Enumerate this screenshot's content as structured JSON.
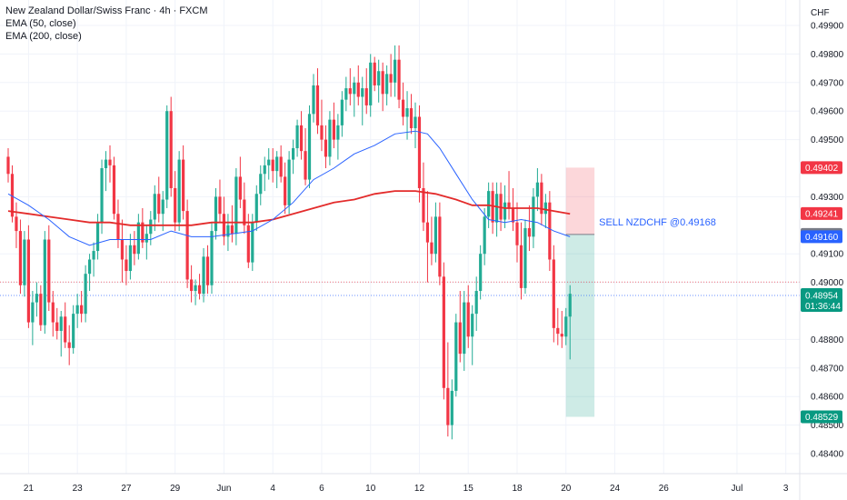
{
  "header": {
    "title": "New Zealand Dollar/Swiss Franc · 4h · FXCM",
    "ema50": "EMA (50, close)",
    "ema200": "EMA (200, close)",
    "currency": "CHF"
  },
  "chart_data": {
    "type": "candlestick",
    "ylim": [
      0.4834,
      0.4995
    ],
    "y_ticks": [
      "0.49900",
      "0.49800",
      "0.49700",
      "0.49600",
      "0.49500",
      "0.49300",
      "0.49100",
      "0.49000",
      "0.48800",
      "0.48700",
      "0.48600",
      "0.48500",
      "0.48400"
    ],
    "y_tick_values": [
      0.499,
      0.498,
      0.497,
      0.496,
      0.495,
      0.493,
      0.491,
      0.49,
      0.488,
      0.487,
      0.486,
      0.485,
      0.484
    ],
    "x_ticks": [
      "21",
      "23",
      "27",
      "29",
      "Jun",
      "4",
      "6",
      "10",
      "12",
      "15",
      "18",
      "20",
      "24",
      "26",
      "Jul",
      "3"
    ],
    "x_tick_index": [
      5,
      17,
      29,
      41,
      53,
      65,
      77,
      89,
      101,
      113,
      125,
      137,
      149,
      161,
      179,
      191
    ],
    "colors": {
      "up": "#22ab94",
      "down": "#f23645",
      "ema50": "#2962ff",
      "ema200": "#e32b2b",
      "sell": "#2962ff"
    },
    "candles": [
      [
        0.4944,
        0.4947,
        0.4935,
        0.4938
      ],
      [
        0.4938,
        0.4941,
        0.4921,
        0.4923
      ],
      [
        0.4923,
        0.4928,
        0.4912,
        0.4918
      ],
      [
        0.4918,
        0.4922,
        0.4896,
        0.4899
      ],
      [
        0.4899,
        0.4918,
        0.4895,
        0.4915
      ],
      [
        0.4915,
        0.492,
        0.4884,
        0.4886
      ],
      [
        0.4886,
        0.4897,
        0.4878,
        0.4893
      ],
      [
        0.4893,
        0.49,
        0.4888,
        0.4896
      ],
      [
        0.4896,
        0.4899,
        0.4883,
        0.4885
      ],
      [
        0.4885,
        0.4918,
        0.4882,
        0.4915
      ],
      [
        0.4915,
        0.492,
        0.489,
        0.4893
      ],
      [
        0.4893,
        0.4897,
        0.4881,
        0.4886
      ],
      [
        0.4886,
        0.4891,
        0.488,
        0.4883
      ],
      [
        0.4883,
        0.489,
        0.4874,
        0.4888
      ],
      [
        0.4888,
        0.4893,
        0.4877,
        0.4879
      ],
      [
        0.4879,
        0.4885,
        0.4871,
        0.4877
      ],
      [
        0.4877,
        0.4892,
        0.4875,
        0.4889
      ],
      [
        0.4889,
        0.4896,
        0.4884,
        0.4892
      ],
      [
        0.4892,
        0.4897,
        0.4886,
        0.4889
      ],
      [
        0.4889,
        0.4906,
        0.4886,
        0.4903
      ],
      [
        0.4903,
        0.491,
        0.4897,
        0.4908
      ],
      [
        0.4908,
        0.4914,
        0.4902,
        0.4911
      ],
      [
        0.4911,
        0.4924,
        0.4908,
        0.4921
      ],
      [
        0.4921,
        0.4943,
        0.4917,
        0.494
      ],
      [
        0.494,
        0.4946,
        0.4932,
        0.4943
      ],
      [
        0.4943,
        0.4948,
        0.4935,
        0.4941
      ],
      [
        0.4941,
        0.4944,
        0.4922,
        0.4924
      ],
      [
        0.4924,
        0.4929,
        0.4912,
        0.4915
      ],
      [
        0.4915,
        0.4922,
        0.49,
        0.4908
      ],
      [
        0.4908,
        0.4913,
        0.4899,
        0.4904
      ],
      [
        0.4904,
        0.4917,
        0.4901,
        0.4913
      ],
      [
        0.4913,
        0.4918,
        0.4906,
        0.491
      ],
      [
        0.491,
        0.4924,
        0.4908,
        0.4921
      ],
      [
        0.4921,
        0.4926,
        0.4912,
        0.4914
      ],
      [
        0.4914,
        0.492,
        0.4908,
        0.4917
      ],
      [
        0.4917,
        0.4925,
        0.4913,
        0.4922
      ],
      [
        0.4922,
        0.4934,
        0.4918,
        0.4931
      ],
      [
        0.4931,
        0.4937,
        0.4921,
        0.4924
      ],
      [
        0.4924,
        0.4932,
        0.4918,
        0.4929
      ],
      [
        0.4929,
        0.4962,
        0.4926,
        0.496
      ],
      [
        0.496,
        0.4965,
        0.493,
        0.4933
      ],
      [
        0.4933,
        0.4939,
        0.4918,
        0.4921
      ],
      [
        0.4921,
        0.4946,
        0.4918,
        0.4943
      ],
      [
        0.4943,
        0.4948,
        0.4922,
        0.4925
      ],
      [
        0.4925,
        0.4929,
        0.4898,
        0.4901
      ],
      [
        0.4901,
        0.4906,
        0.4893,
        0.4897
      ],
      [
        0.4897,
        0.4901,
        0.4892,
        0.4899
      ],
      [
        0.4899,
        0.4903,
        0.4894,
        0.4896
      ],
      [
        0.4896,
        0.4912,
        0.4893,
        0.4909
      ],
      [
        0.4909,
        0.4913,
        0.4896,
        0.4899
      ],
      [
        0.4899,
        0.4921,
        0.4896,
        0.4918
      ],
      [
        0.4918,
        0.4933,
        0.4915,
        0.493
      ],
      [
        0.493,
        0.4936,
        0.4921,
        0.4924
      ],
      [
        0.4924,
        0.493,
        0.4913,
        0.4916
      ],
      [
        0.4916,
        0.4924,
        0.4911,
        0.492
      ],
      [
        0.492,
        0.4927,
        0.4914,
        0.4917
      ],
      [
        0.4917,
        0.494,
        0.4913,
        0.4937
      ],
      [
        0.4937,
        0.4944,
        0.4926,
        0.4929
      ],
      [
        0.4929,
        0.4935,
        0.4917,
        0.492
      ],
      [
        0.492,
        0.4924,
        0.4905,
        0.4907
      ],
      [
        0.4907,
        0.4924,
        0.4904,
        0.4921
      ],
      [
        0.4921,
        0.4934,
        0.4918,
        0.4931
      ],
      [
        0.4931,
        0.4941,
        0.4927,
        0.4938
      ],
      [
        0.4938,
        0.4944,
        0.4932,
        0.4941
      ],
      [
        0.4941,
        0.4947,
        0.4936,
        0.4943
      ],
      [
        0.4943,
        0.4947,
        0.4935,
        0.4939
      ],
      [
        0.4939,
        0.4946,
        0.4933,
        0.4944
      ],
      [
        0.4944,
        0.4948,
        0.4935,
        0.4937
      ],
      [
        0.4937,
        0.4942,
        0.4924,
        0.4927
      ],
      [
        0.4927,
        0.4946,
        0.4924,
        0.4943
      ],
      [
        0.4943,
        0.495,
        0.4938,
        0.4947
      ],
      [
        0.4947,
        0.4957,
        0.4944,
        0.4955
      ],
      [
        0.4955,
        0.496,
        0.4943,
        0.4946
      ],
      [
        0.4946,
        0.4954,
        0.4934,
        0.4936
      ],
      [
        0.4936,
        0.4962,
        0.4933,
        0.4959
      ],
      [
        0.4959,
        0.4973,
        0.4956,
        0.4969
      ],
      [
        0.4969,
        0.4975,
        0.4952,
        0.4955
      ],
      [
        0.4955,
        0.4964,
        0.4946,
        0.495
      ],
      [
        0.495,
        0.4955,
        0.494,
        0.4944
      ],
      [
        0.4944,
        0.496,
        0.4941,
        0.4957
      ],
      [
        0.4957,
        0.4963,
        0.4947,
        0.495
      ],
      [
        0.495,
        0.4959,
        0.4943,
        0.4955
      ],
      [
        0.4955,
        0.4967,
        0.4951,
        0.4964
      ],
      [
        0.4964,
        0.4972,
        0.496,
        0.4968
      ],
      [
        0.4968,
        0.4975,
        0.4962,
        0.4966
      ],
      [
        0.4966,
        0.4972,
        0.4958,
        0.497
      ],
      [
        0.497,
        0.4976,
        0.4962,
        0.4965
      ],
      [
        0.4965,
        0.4972,
        0.4955,
        0.4968
      ],
      [
        0.4968,
        0.4975,
        0.4959,
        0.4962
      ],
      [
        0.4962,
        0.498,
        0.4958,
        0.4977
      ],
      [
        0.4977,
        0.4979,
        0.4967,
        0.4969
      ],
      [
        0.4969,
        0.4978,
        0.4963,
        0.4974
      ],
      [
        0.4974,
        0.4977,
        0.496,
        0.4966
      ],
      [
        0.4966,
        0.4976,
        0.4962,
        0.4973
      ],
      [
        0.4973,
        0.498,
        0.4965,
        0.497
      ],
      [
        0.497,
        0.4983,
        0.4965,
        0.4978
      ],
      [
        0.4978,
        0.4983,
        0.4961,
        0.4964
      ],
      [
        0.4964,
        0.497,
        0.4955,
        0.4958
      ],
      [
        0.4958,
        0.4967,
        0.495,
        0.4961
      ],
      [
        0.4961,
        0.4966,
        0.4952,
        0.4954
      ],
      [
        0.4954,
        0.4963,
        0.4947,
        0.4958
      ],
      [
        0.4958,
        0.4962,
        0.4928,
        0.4933
      ],
      [
        0.4933,
        0.4942,
        0.4918,
        0.4921
      ],
      [
        0.4921,
        0.4932,
        0.49,
        0.4914
      ],
      [
        0.4914,
        0.4923,
        0.4906,
        0.491
      ],
      [
        0.491,
        0.4928,
        0.4907,
        0.4923
      ],
      [
        0.4923,
        0.4928,
        0.4899,
        0.4902
      ],
      [
        0.4902,
        0.4907,
        0.4859,
        0.4863
      ],
      [
        0.4863,
        0.4879,
        0.4846,
        0.485
      ],
      [
        0.485,
        0.4866,
        0.4845,
        0.4862
      ],
      [
        0.4862,
        0.4889,
        0.486,
        0.4886
      ],
      [
        0.4886,
        0.4897,
        0.4872,
        0.4875
      ],
      [
        0.4875,
        0.4897,
        0.4869,
        0.4893
      ],
      [
        0.4893,
        0.4899,
        0.4877,
        0.4881
      ],
      [
        0.4881,
        0.4892,
        0.4871,
        0.4889
      ],
      [
        0.4889,
        0.4902,
        0.4883,
        0.4897
      ],
      [
        0.4897,
        0.4913,
        0.4894,
        0.491
      ],
      [
        0.491,
        0.4926,
        0.4906,
        0.4923
      ],
      [
        0.4923,
        0.4935,
        0.4919,
        0.4932
      ],
      [
        0.4932,
        0.4935,
        0.4917,
        0.4921
      ],
      [
        0.4921,
        0.4935,
        0.4916,
        0.4931
      ],
      [
        0.4931,
        0.4935,
        0.4918,
        0.4922
      ],
      [
        0.4922,
        0.4934,
        0.4919,
        0.4928
      ],
      [
        0.4928,
        0.4939,
        0.4922,
        0.4926
      ],
      [
        0.4926,
        0.4933,
        0.4918,
        0.4921
      ],
      [
        0.4921,
        0.4928,
        0.4907,
        0.4913
      ],
      [
        0.4913,
        0.4921,
        0.4894,
        0.4898
      ],
      [
        0.4898,
        0.4922,
        0.4896,
        0.4919
      ],
      [
        0.4919,
        0.4927,
        0.4911,
        0.4916
      ],
      [
        0.4916,
        0.4933,
        0.4912,
        0.493
      ],
      [
        0.493,
        0.494,
        0.4925,
        0.4935
      ],
      [
        0.4935,
        0.4938,
        0.492,
        0.4924
      ],
      [
        0.4924,
        0.4931,
        0.4919,
        0.4928
      ],
      [
        0.4928,
        0.4932,
        0.4904,
        0.4908
      ],
      [
        0.4908,
        0.4913,
        0.4879,
        0.4884
      ],
      [
        0.4884,
        0.4891,
        0.4878,
        0.4882
      ],
      [
        0.4882,
        0.489,
        0.4877,
        0.4881
      ],
      [
        0.4881,
        0.4891,
        0.4878,
        0.4888
      ],
      [
        0.4888,
        0.4899,
        0.4873,
        0.4896
      ]
    ],
    "ema50": [
      [
        0,
        0.4931
      ],
      [
        5,
        0.4927
      ],
      [
        10,
        0.4922
      ],
      [
        15,
        0.4916
      ],
      [
        20,
        0.4913
      ],
      [
        25,
        0.4915
      ],
      [
        30,
        0.4915
      ],
      [
        35,
        0.4915
      ],
      [
        40,
        0.4918
      ],
      [
        45,
        0.4916
      ],
      [
        50,
        0.4916
      ],
      [
        55,
        0.4917
      ],
      [
        60,
        0.4918
      ],
      [
        65,
        0.4922
      ],
      [
        70,
        0.4928
      ],
      [
        75,
        0.4936
      ],
      [
        80,
        0.494
      ],
      [
        85,
        0.4945
      ],
      [
        90,
        0.4948
      ],
      [
        95,
        0.4952
      ],
      [
        100,
        0.4953
      ],
      [
        103,
        0.4952
      ],
      [
        106,
        0.4947
      ],
      [
        110,
        0.4938
      ],
      [
        114,
        0.4929
      ],
      [
        118,
        0.4922
      ],
      [
        122,
        0.4921
      ],
      [
        126,
        0.4922
      ],
      [
        130,
        0.4921
      ],
      [
        134,
        0.4918
      ],
      [
        138,
        0.4916
      ]
    ],
    "ema200": [
      [
        0,
        0.4925
      ],
      [
        5,
        0.4924
      ],
      [
        10,
        0.4923
      ],
      [
        15,
        0.4922
      ],
      [
        20,
        0.4921
      ],
      [
        25,
        0.4921
      ],
      [
        30,
        0.492
      ],
      [
        35,
        0.492
      ],
      [
        40,
        0.492
      ],
      [
        45,
        0.492
      ],
      [
        50,
        0.4921
      ],
      [
        55,
        0.4921
      ],
      [
        60,
        0.4921
      ],
      [
        65,
        0.4922
      ],
      [
        70,
        0.4924
      ],
      [
        75,
        0.4926
      ],
      [
        80,
        0.4928
      ],
      [
        85,
        0.4929
      ],
      [
        90,
        0.4931
      ],
      [
        95,
        0.4932
      ],
      [
        100,
        0.4932
      ],
      [
        105,
        0.4931
      ],
      [
        110,
        0.4929
      ],
      [
        114,
        0.4927
      ],
      [
        118,
        0.4927
      ],
      [
        122,
        0.4926
      ],
      [
        126,
        0.4926
      ],
      [
        130,
        0.4926
      ],
      [
        134,
        0.4925
      ],
      [
        138,
        0.4924
      ]
    ],
    "sell": {
      "label": "SELL NZDCHF @0.49168",
      "entry": 0.49168,
      "stop": 0.49402,
      "target": 0.48529,
      "start_index": 137,
      "end_index": 144
    },
    "price_tags": [
      {
        "label": "0.49402",
        "value": 0.49402,
        "color": "#f23645"
      },
      {
        "label": "0.49241",
        "value": 0.49241,
        "color": "#f23645"
      },
      {
        "label": "0.49168",
        "value": 0.49168,
        "color": "#787b86"
      },
      {
        "label": "0.49160",
        "value": 0.4916,
        "color": "#2962ff"
      },
      {
        "label": "0.48529",
        "value": 0.48529,
        "color": "#089981"
      }
    ],
    "current_price": {
      "label": "0.48954",
      "value": 0.48954,
      "countdown": "01:36:44",
      "color": "#089981"
    },
    "dotted_line_red": 0.49001,
    "dotted_line_blue": 0.48954
  }
}
